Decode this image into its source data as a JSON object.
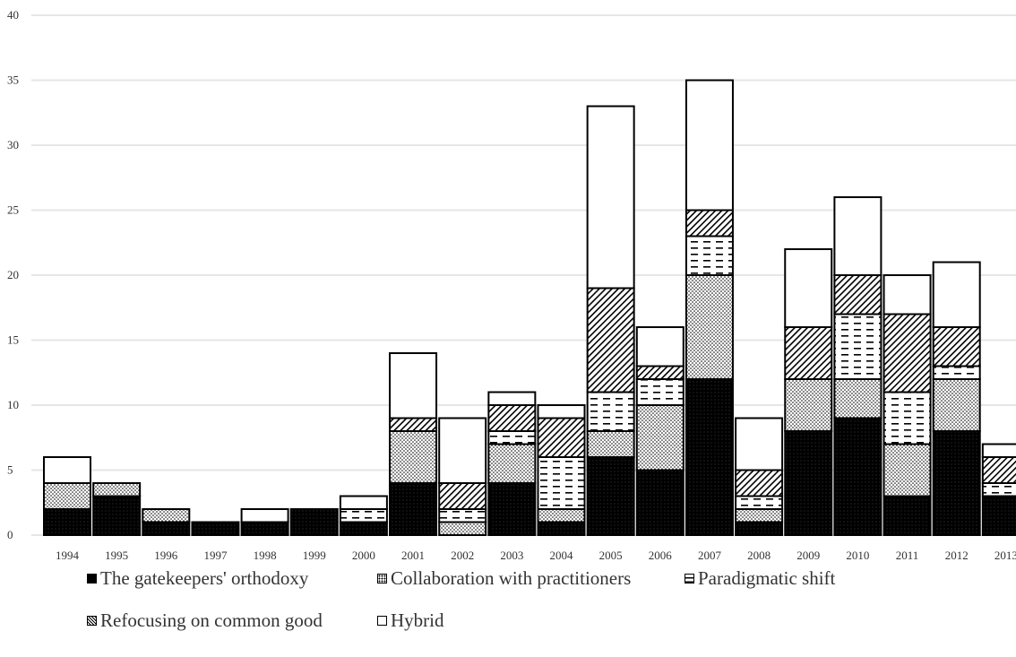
{
  "chart_data": {
    "type": "bar",
    "stacked": true,
    "title": "",
    "xlabel": "",
    "ylabel": "",
    "ylim": [
      0,
      40
    ],
    "yticks": [
      "0",
      "5",
      "10",
      "15",
      "20",
      "25",
      "30",
      "35",
      "40"
    ],
    "grid": true,
    "legend_position": "bottom",
    "categories": [
      "1994",
      "1995",
      "1996",
      "1997",
      "1998",
      "1999",
      "2000",
      "2001",
      "2002",
      "2003",
      "2004",
      "2005",
      "2006",
      "2007",
      "2008",
      "2009",
      "2010",
      "2011",
      "2012",
      "2013"
    ],
    "series": [
      {
        "name": "The gatekeepers' orthodoxy",
        "pattern": "solid-black",
        "values": [
          2,
          3,
          1,
          1,
          1,
          2,
          1,
          4,
          0,
          4,
          1,
          6,
          5,
          12,
          1,
          8,
          9,
          3,
          8,
          3
        ]
      },
      {
        "name": "Collaboration with practitioners",
        "pattern": "dots",
        "values": [
          2,
          1,
          1,
          0,
          0,
          0,
          0,
          4,
          1,
          3,
          1,
          2,
          5,
          8,
          1,
          4,
          3,
          4,
          4,
          0
        ]
      },
      {
        "name": "Paradigmatic shift",
        "pattern": "dashes",
        "values": [
          0,
          0,
          0,
          0,
          0,
          0,
          1,
          0,
          1,
          1,
          4,
          3,
          2,
          3,
          1,
          0,
          5,
          4,
          1,
          1
        ]
      },
      {
        "name": "Refocusing on common good",
        "pattern": "diagonal",
        "values": [
          0,
          0,
          0,
          0,
          0,
          0,
          0,
          1,
          2,
          2,
          3,
          8,
          1,
          2,
          2,
          4,
          3,
          6,
          3,
          2
        ]
      },
      {
        "name": "Hybrid",
        "pattern": "white",
        "values": [
          2,
          0,
          0,
          0,
          1,
          0,
          1,
          5,
          5,
          1,
          1,
          14,
          3,
          10,
          4,
          6,
          6,
          3,
          5,
          1
        ]
      }
    ]
  },
  "colors": {
    "gridline": "#e6e6e6",
    "bar_stroke": "#000000",
    "text": "#333333"
  }
}
